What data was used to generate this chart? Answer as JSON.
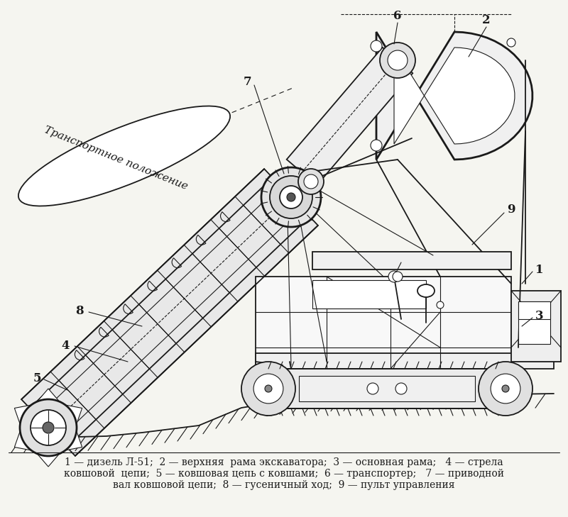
{
  "background_color": "#f5f5f0",
  "figure_width": 8.0,
  "figure_height": 7.29,
  "dpi": 100,
  "caption_line1": "1 — дизель Л-51;  2 — верхняя  рама экскаватора;  3 — основная рама;   4 — стрела",
  "caption_line2": "ковшовой  цепи;  5 — ковшовая цепь с ковшами;  6 — транспортер;   7 — приводной",
  "caption_line3": "вал ковшовой цепи;  8 — гусеничный ход;  9 — пульт управления",
  "transport_label": "Транспортное положение",
  "line_color": "#1a1a1a",
  "caption_fontsize": 10.0
}
